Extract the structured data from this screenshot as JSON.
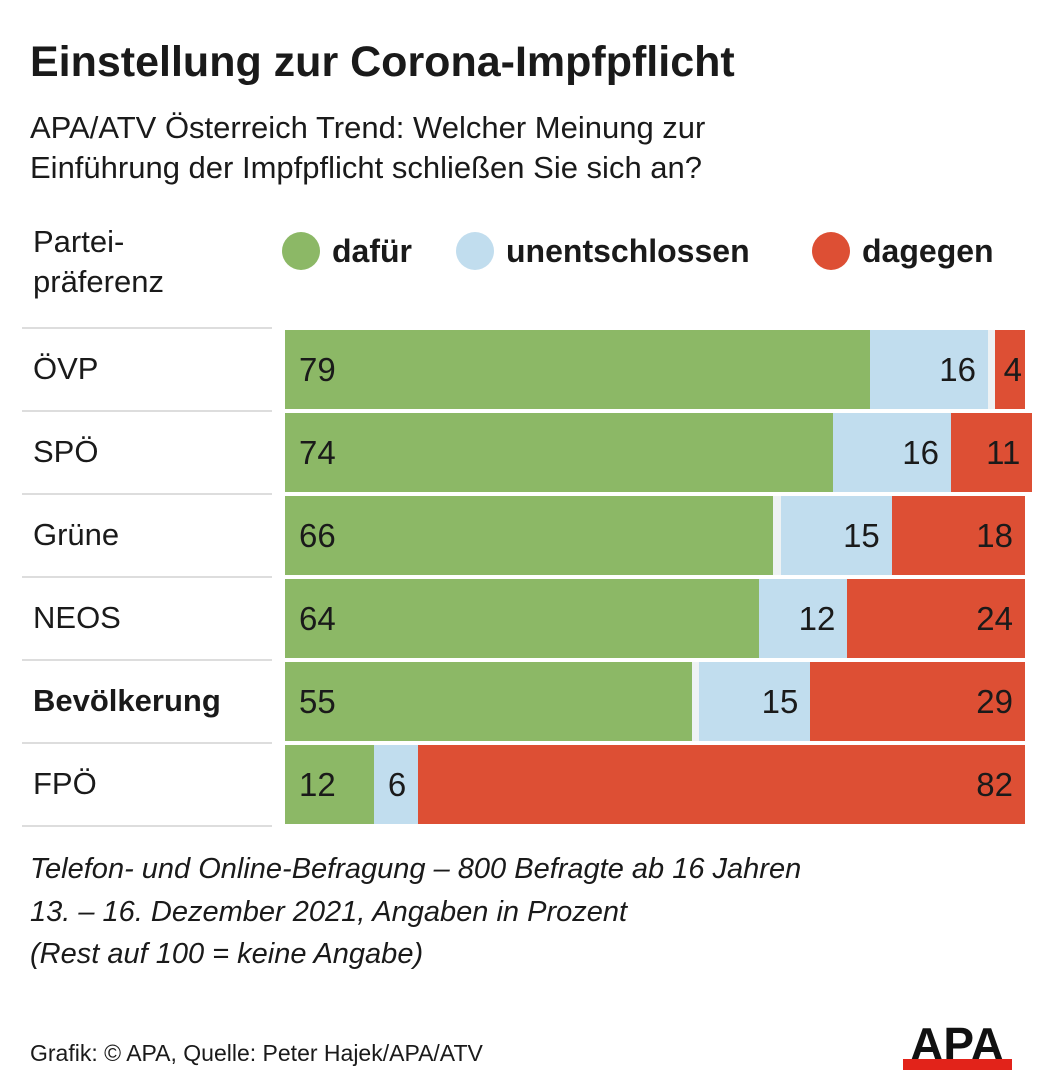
{
  "title": "Einstellung zur Corona-Impfpflicht",
  "subtitle_lines": [
    "APA/ATV Österreich Trend: Welcher Meinung zur",
    "Einführung der Impfpflicht schließen Sie sich an?"
  ],
  "row_header_lines": [
    "Partei-",
    "präferenz"
  ],
  "notes": [
    "Telefon- und Online-Befragung – 800 Befragte ab 16 Jahren",
    "13. – 16. Dezember 2021, Angaben in Prozent",
    "(Rest auf 100 = keine Angabe)"
  ],
  "credit": "Grafik: © APA, Quelle: Peter Hajek/APA/ATV",
  "logo_text": "APA",
  "chart_data": {
    "type": "bar",
    "orientation": "horizontal-stacked",
    "categories": [
      "ÖVP",
      "SPÖ",
      "Grüne",
      "NEOS",
      "Bevölkerung",
      "FPÖ"
    ],
    "highlight_category": "Bevölkerung",
    "series": [
      {
        "name": "dafür",
        "color": "#8cb866",
        "values": [
          79,
          74,
          66,
          64,
          55,
          12
        ]
      },
      {
        "name": "unentschlossen",
        "color": "#c1ddee",
        "values": [
          16,
          16,
          15,
          12,
          15,
          6
        ]
      },
      {
        "name": "dagegen",
        "color": "#dd4f34",
        "values": [
          4,
          11,
          18,
          24,
          29,
          82
        ]
      }
    ],
    "xlim": [
      0,
      100
    ],
    "legend": "top"
  }
}
